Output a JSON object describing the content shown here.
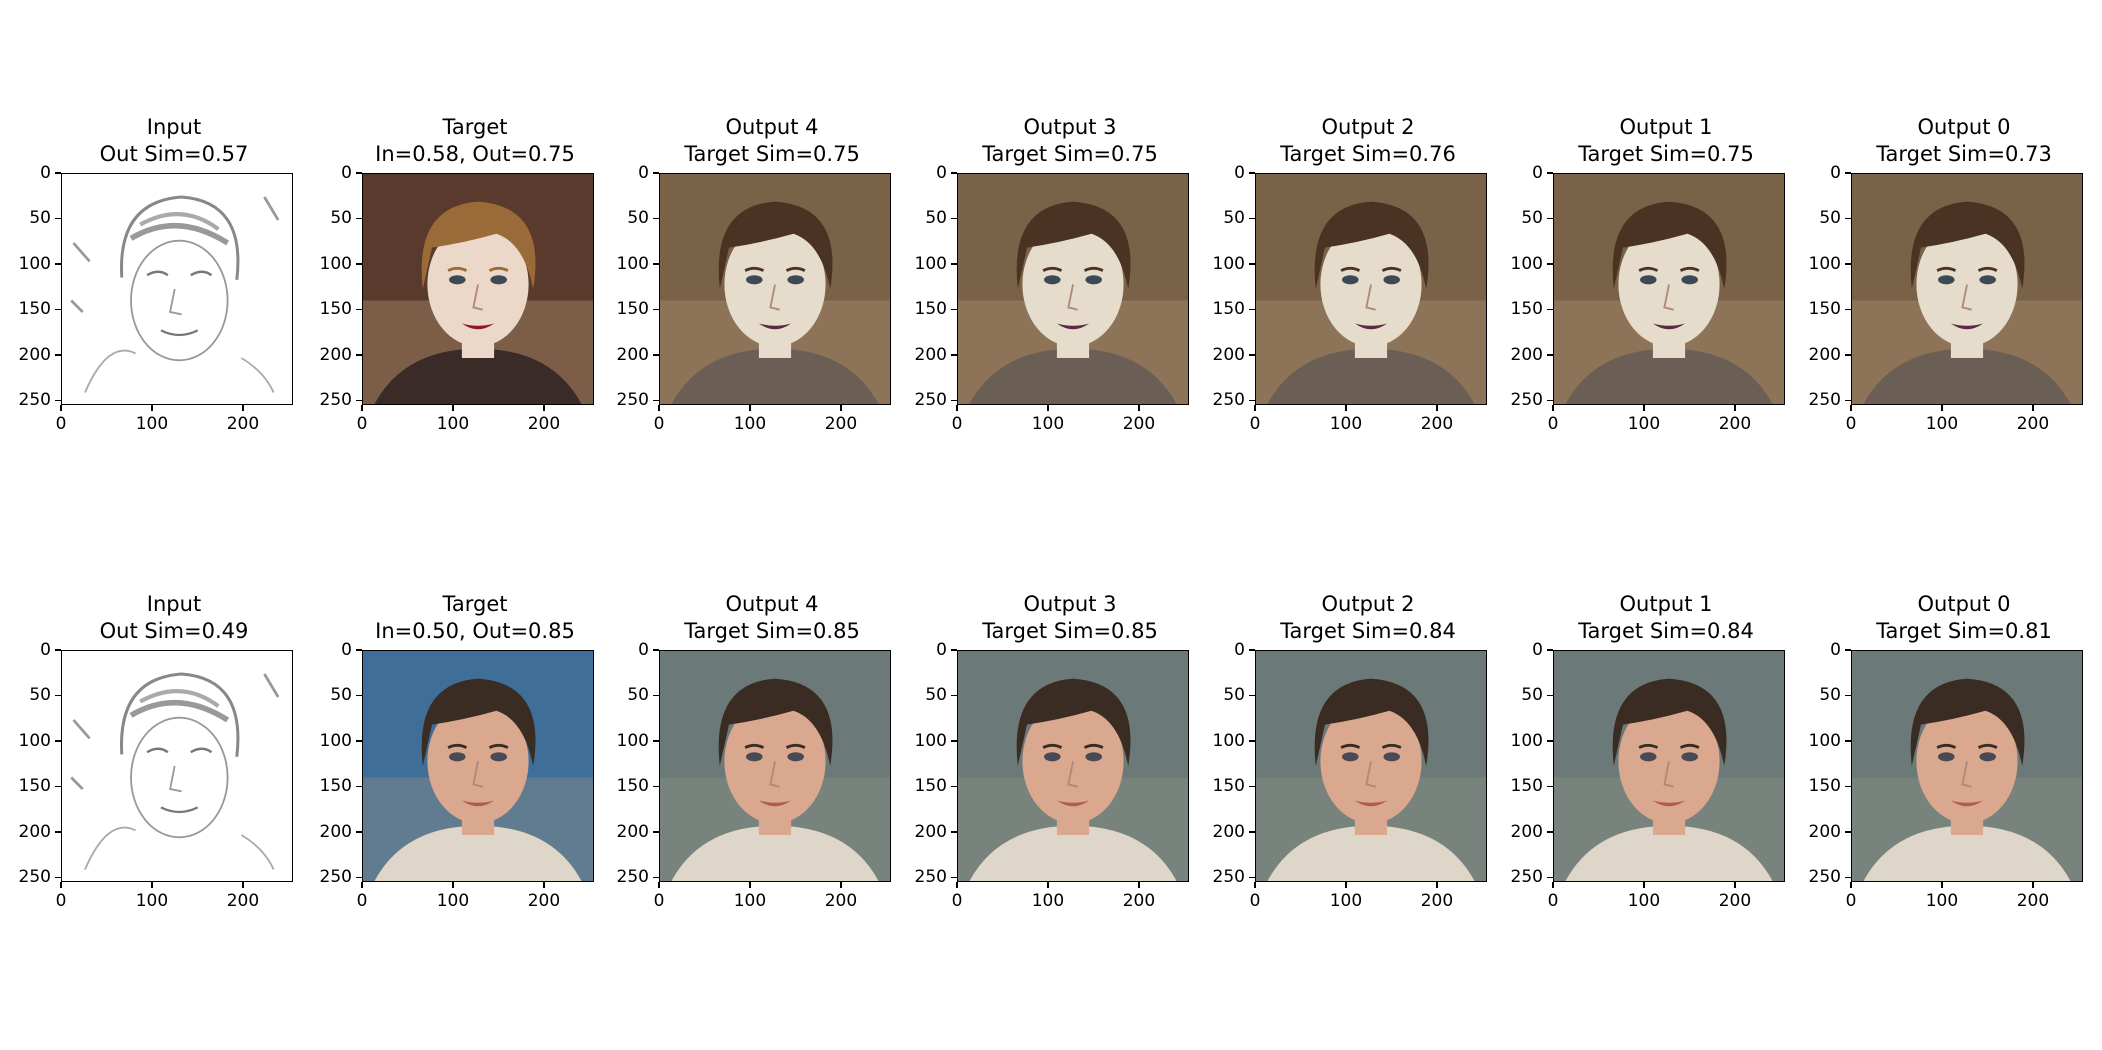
{
  "figure": {
    "rows": [
      {
        "tone": "sepia",
        "panels": [
          {
            "kind": "sketch",
            "title_line1": "Input",
            "title_line2": "Out Sim=0.57"
          },
          {
            "kind": "target",
            "title_line1": "Target",
            "title_line2": "In=0.58, Out=0.75"
          },
          {
            "kind": "output",
            "title_line1": "Output 4",
            "title_line2": "Target Sim=0.75"
          },
          {
            "kind": "output",
            "title_line1": "Output 3",
            "title_line2": "Target Sim=0.75"
          },
          {
            "kind": "output",
            "title_line1": "Output 2",
            "title_line2": "Target Sim=0.76"
          },
          {
            "kind": "output",
            "title_line1": "Output 1",
            "title_line2": "Target Sim=0.75"
          },
          {
            "kind": "output",
            "title_line1": "Output 0",
            "title_line2": "Target Sim=0.73"
          }
        ]
      },
      {
        "tone": "cool",
        "panels": [
          {
            "kind": "sketch",
            "title_line1": "Input",
            "title_line2": "Out Sim=0.49"
          },
          {
            "kind": "target",
            "title_line1": "Target",
            "title_line2": "In=0.50, Out=0.85"
          },
          {
            "kind": "output",
            "title_line1": "Output 4",
            "title_line2": "Target Sim=0.85"
          },
          {
            "kind": "output",
            "title_line1": "Output 3",
            "title_line2": "Target Sim=0.85"
          },
          {
            "kind": "output",
            "title_line1": "Output 2",
            "title_line2": "Target Sim=0.84"
          },
          {
            "kind": "output",
            "title_line1": "Output 1",
            "title_line2": "Target Sim=0.84"
          },
          {
            "kind": "output",
            "title_line1": "Output 0",
            "title_line2": "Target Sim=0.81"
          }
        ]
      }
    ],
    "y_ticks": [
      "0",
      "50",
      "100",
      "150",
      "200",
      "250"
    ],
    "x_ticks": [
      "0",
      "100",
      "200"
    ],
    "axis_range": [
      0,
      255
    ]
  }
}
